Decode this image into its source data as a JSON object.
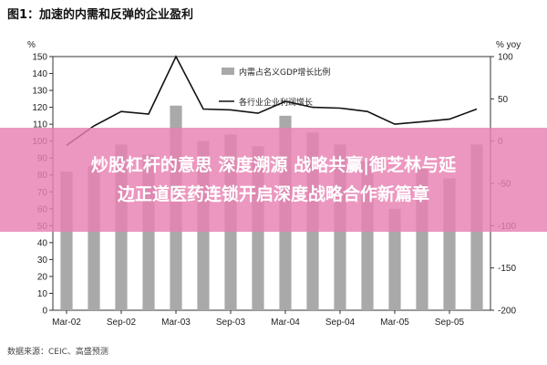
{
  "chart_data": {
    "type": "bar",
    "title": "图1：加速的内需和反弹的企业盈利",
    "categories": [
      "Mar-02",
      "Jun-02",
      "Sep-02",
      "Dec-02",
      "Mar-03",
      "Jun-03",
      "Sep-03",
      "Dec-03",
      "Mar-04",
      "Jun-04",
      "Sep-04",
      "Dec-04",
      "Mar-05",
      "Jun-05",
      "Sep-05",
      "Dec-05"
    ],
    "x_tick_labels": [
      "Mar-02",
      "Sep-02",
      "Mar-03",
      "Sep-03",
      "Mar-04",
      "Sep-04",
      "Mar-05",
      "Sep-05"
    ],
    "left_axis": {
      "unit": "%",
      "ylim": [
        0,
        150
      ],
      "ticks": [
        "0",
        "10",
        "20",
        "30",
        "40",
        "50",
        "60",
        "70",
        "80",
        "90",
        "100",
        "110",
        "120",
        "130",
        "140",
        "150"
      ]
    },
    "right_axis": {
      "unit": "% yoy",
      "ylim": [
        -200,
        100
      ],
      "ticks": [
        "-200",
        "-150",
        "-100",
        "-50",
        "0",
        "50",
        "100"
      ]
    },
    "series": [
      {
        "name": "内需占名义GDP增长比例",
        "type": "bar",
        "axis": "left",
        "values": [
          82,
          85,
          98,
          92,
          121,
          100,
          104,
          97,
          115,
          105,
          98,
          88,
          60,
          85,
          78,
          98
        ]
      },
      {
        "name": "各行业企业利润增长",
        "type": "line",
        "axis": "right",
        "values": [
          -5,
          18,
          35,
          32,
          100,
          38,
          37,
          33,
          47,
          40,
          39,
          35,
          20,
          23,
          26,
          38
        ]
      }
    ],
    "grid": false,
    "legend": "top-right",
    "source": "数据来源：CEIC、高盛预测",
    "colors": {
      "bar": "#a9a9a9",
      "line": "#111111"
    }
  },
  "overlay": {
    "line1": "炒股杠杆的意思 深度溯源 战略共赢|御芝林与延",
    "line2": "边正道医药连锁开启深度战略合作新篇章"
  }
}
